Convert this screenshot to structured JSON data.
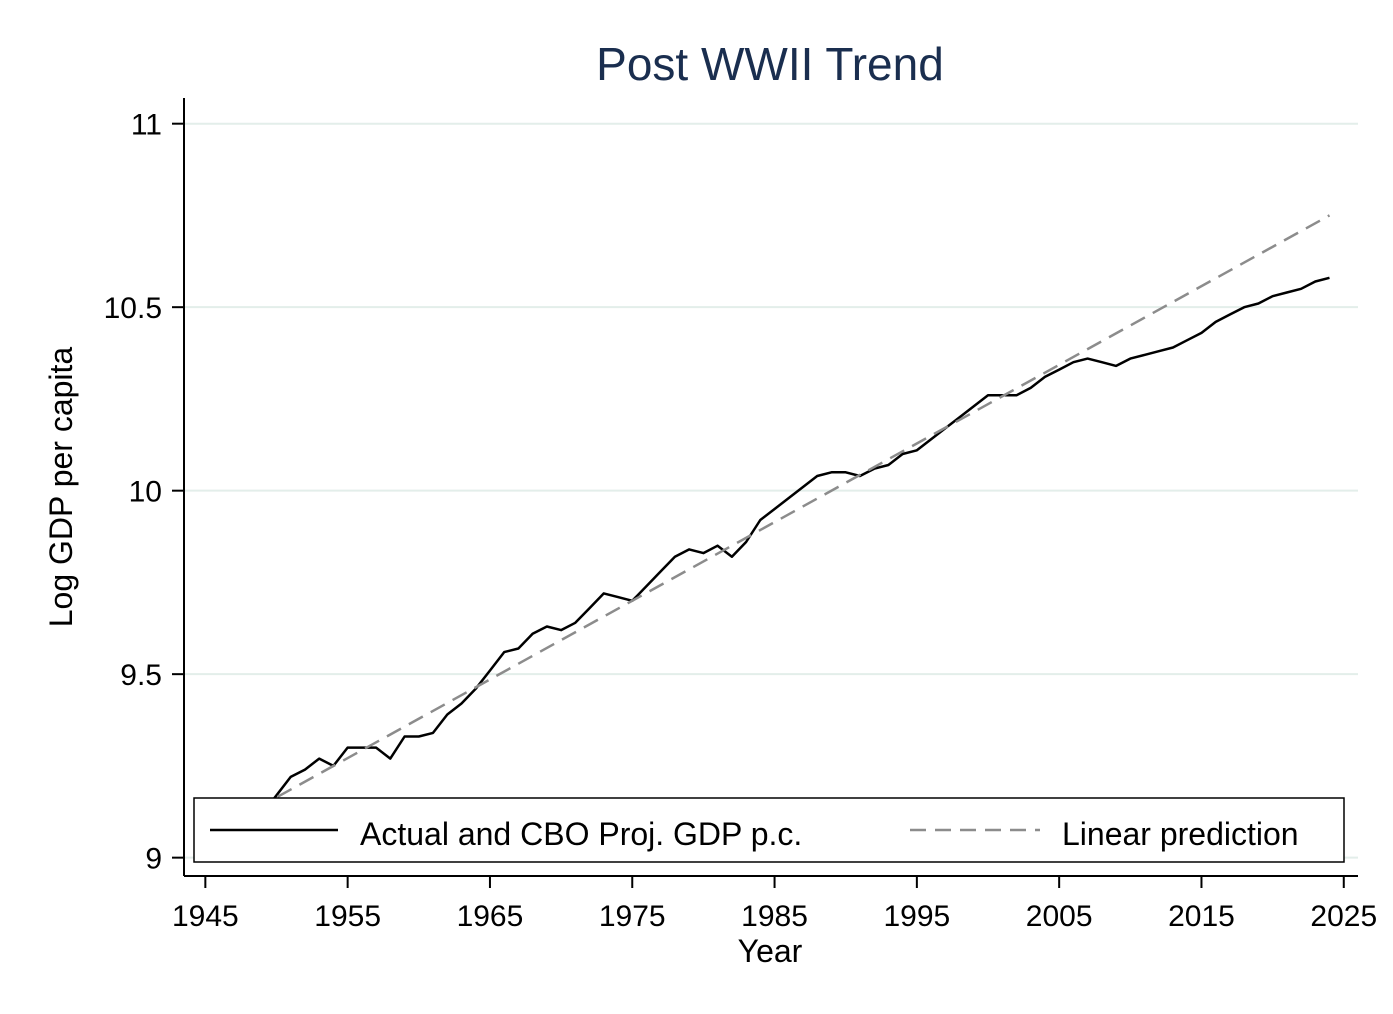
{
  "chart_data": {
    "type": "line",
    "title": "Post WWII Trend",
    "xlabel": "Year",
    "ylabel": "Log GDP per capita",
    "xlim": [
      1943.5,
      2026
    ],
    "ylim": [
      8.95,
      11.07
    ],
    "xticks": [
      1945,
      1955,
      1965,
      1975,
      1985,
      1995,
      2005,
      2015,
      2025
    ],
    "xtick_labels": [
      "1945",
      "1955",
      "1965",
      "1975",
      "1985",
      "1995",
      "2005",
      "2015",
      "2025"
    ],
    "yticks": [
      9,
      9.5,
      10,
      10.5,
      11
    ],
    "ytick_labels": [
      "9",
      "9.5",
      "10",
      "10.5",
      "11"
    ],
    "grid": "horizontal",
    "legend_position": "bottom-inside",
    "colors": {
      "title": "#1a2e4f",
      "actual": "#000000",
      "linear": "#8c8c8c",
      "grid": "#e3eeea"
    },
    "series": [
      {
        "name": "Actual and CBO Proj. GDP p.c.",
        "style": "solid",
        "x": [
          1947,
          1948,
          1949,
          1950,
          1951,
          1952,
          1953,
          1954,
          1955,
          1956,
          1957,
          1958,
          1959,
          1960,
          1961,
          1962,
          1963,
          1964,
          1965,
          1966,
          1967,
          1968,
          1969,
          1970,
          1971,
          1972,
          1973,
          1974,
          1975,
          1976,
          1977,
          1978,
          1979,
          1980,
          1981,
          1982,
          1983,
          1984,
          1985,
          1986,
          1987,
          1988,
          1989,
          1990,
          1991,
          1992,
          1993,
          1994,
          1995,
          1996,
          1997,
          1998,
          1999,
          2000,
          2001,
          2002,
          2003,
          2004,
          2005,
          2006,
          2007,
          2008,
          2009,
          2010,
          2011,
          2012,
          2013,
          2014,
          2015,
          2016,
          2017,
          2018,
          2019,
          2020,
          2021,
          2022,
          2023,
          2024
        ],
        "values": [
          9.1,
          9.12,
          9.12,
          9.17,
          9.22,
          9.24,
          9.27,
          9.25,
          9.3,
          9.3,
          9.3,
          9.27,
          9.33,
          9.33,
          9.34,
          9.39,
          9.42,
          9.46,
          9.51,
          9.56,
          9.57,
          9.61,
          9.63,
          9.62,
          9.64,
          9.68,
          9.72,
          9.71,
          9.7,
          9.74,
          9.78,
          9.82,
          9.84,
          9.83,
          9.85,
          9.82,
          9.86,
          9.92,
          9.95,
          9.98,
          10.01,
          10.04,
          10.05,
          10.05,
          10.04,
          10.06,
          10.07,
          10.1,
          10.11,
          10.14,
          10.17,
          10.2,
          10.23,
          10.26,
          10.26,
          10.26,
          10.28,
          10.31,
          10.33,
          10.35,
          10.36,
          10.35,
          10.34,
          10.36,
          10.37,
          10.38,
          10.39,
          10.41,
          10.43,
          10.46,
          10.48,
          10.5,
          10.51,
          10.53,
          10.54,
          10.55,
          10.57,
          10.58
        ]
      },
      {
        "name": "Linear prediction",
        "style": "dashed",
        "x": [
          1947,
          2024
        ],
        "values": [
          9.1,
          10.75
        ]
      }
    ]
  }
}
